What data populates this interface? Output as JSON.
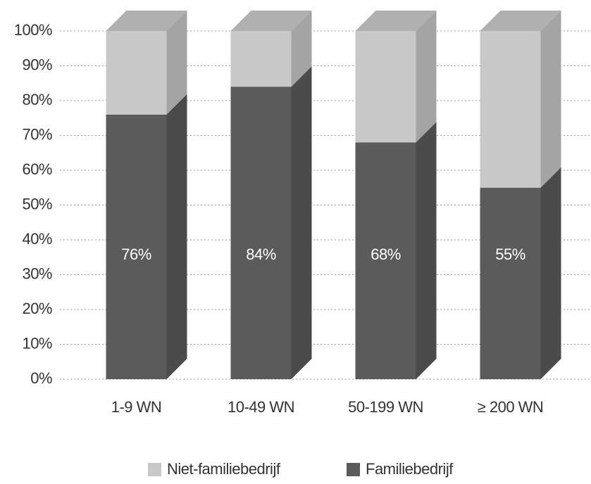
{
  "chart_data": {
    "type": "bar",
    "stacked": true,
    "categories": [
      "1-9 WN",
      "10-49 WN",
      "50-199 WN",
      "≥ 200 WN"
    ],
    "series": [
      {
        "name": "Familiebedrijf",
        "color": "#5b5b5b",
        "values": [
          76,
          84,
          68,
          55
        ],
        "value_labels": [
          "76%",
          "84%",
          "68%",
          "55%"
        ]
      },
      {
        "name": "Niet-familiebedrijf",
        "color": "#c8c8c8",
        "values": [
          24,
          16,
          32,
          45
        ]
      }
    ],
    "ylim": [
      0,
      100
    ],
    "yticks": [
      {
        "value": 0,
        "label": "0%"
      },
      {
        "value": 10,
        "label": "10%"
      },
      {
        "value": 20,
        "label": "20%"
      },
      {
        "value": 30,
        "label": "30%"
      },
      {
        "value": 40,
        "label": "40%"
      },
      {
        "value": 50,
        "label": "50%"
      },
      {
        "value": 60,
        "label": "60%"
      },
      {
        "value": 70,
        "label": "70%"
      },
      {
        "value": 80,
        "label": "80%"
      },
      {
        "value": 90,
        "label": "90%"
      },
      {
        "value": 100,
        "label": "100%"
      }
    ],
    "grid": true,
    "legend": "bottom"
  }
}
